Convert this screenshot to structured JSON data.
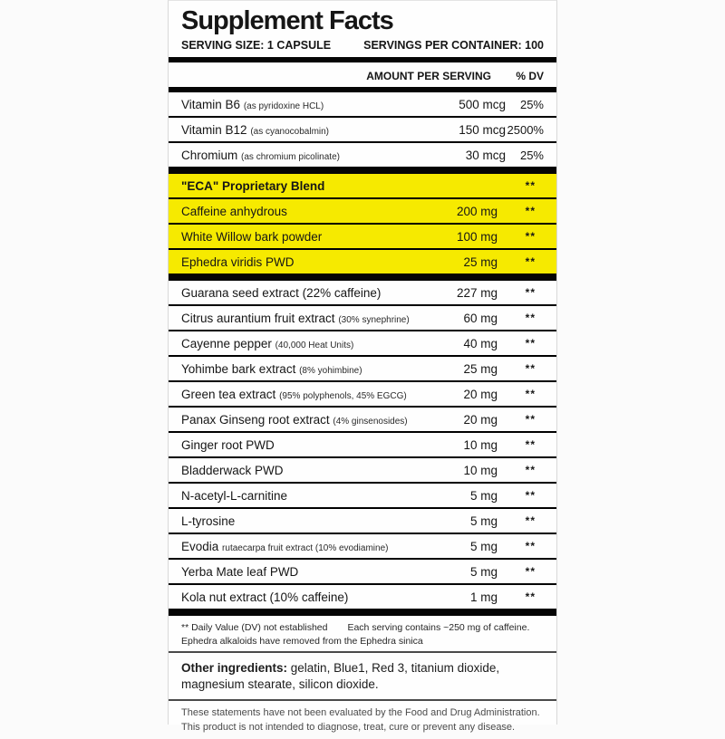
{
  "label": {
    "title": "Supplement Facts",
    "serving_size": "SERVING SIZE: 1 CAPSULE",
    "servings_per_container": "SERVINGS PER CONTAINER: 100",
    "col_amount": "AMOUNT PER SERVING",
    "col_dv": "% DV",
    "highlight_color": "#f6ea00",
    "rows": [
      {
        "name": "Vitamin B6",
        "sub": "(as pyridoxine HCL)",
        "amount": "500 mcg",
        "dv": "25%"
      },
      {
        "name": "Vitamin B12",
        "sub": "(as cyanocobalmin)",
        "amount": "150 mcg",
        "dv": "2500%"
      },
      {
        "name": "Chromium",
        "sub": "(as chromium picolinate)",
        "amount": "30 mcg",
        "dv": "25%",
        "thick_after": true
      },
      {
        "name": "\"ECA\" Proprietary Blend",
        "amount": "",
        "dv": "**",
        "highlight": true,
        "bold": true
      },
      {
        "name": "Caffeine anhydrous",
        "amount": "200 mg",
        "dv": "**",
        "highlight": true
      },
      {
        "name": "White Willow bark powder",
        "amount": "100 mg",
        "dv": "**",
        "highlight": true
      },
      {
        "name": "Ephedra viridis PWD",
        "amount": "25 mg",
        "dv": "**",
        "highlight": true,
        "thick_after": true
      },
      {
        "name": "Guarana seed extract (22% caffeine)",
        "amount": "227 mg",
        "dv": "**"
      },
      {
        "name": "Citrus aurantium fruit extract",
        "sub": "(30% synephrine)",
        "amount": "60 mg",
        "dv": "**"
      },
      {
        "name": "Cayenne pepper",
        "sub": "(40,000 Heat Units)",
        "amount": "40 mg",
        "dv": "**"
      },
      {
        "name": "Yohimbe bark extract",
        "sub": "(8% yohimbine)",
        "amount": "25 mg",
        "dv": "**"
      },
      {
        "name": "Green tea extract",
        "sub": "(95% polyphenols, 45% EGCG)",
        "amount": "20 mg",
        "dv": "**"
      },
      {
        "name": "Panax Ginseng root extract",
        "sub": "(4% ginsenosides)",
        "amount": "20 mg",
        "dv": "**"
      },
      {
        "name": "Ginger root PWD",
        "amount": "10 mg",
        "dv": "**"
      },
      {
        "name": "Bladderwack PWD",
        "amount": "10 mg",
        "dv": "**"
      },
      {
        "name": "N-acetyl-L-carnitine",
        "amount": "5 mg",
        "dv": "**"
      },
      {
        "name": "L-tyrosine",
        "amount": "5 mg",
        "dv": "**"
      },
      {
        "name": "Evodia",
        "sub": "rutaecarpa fruit extract (10% evodiamine)",
        "amount": "5 mg",
        "dv": "**"
      },
      {
        "name": "Yerba Mate leaf PWD",
        "amount": "5 mg",
        "dv": "**"
      },
      {
        "name": "Kola nut extract (10% caffeine)",
        "amount": "1 mg",
        "dv": "**",
        "thick_after": true
      }
    ],
    "footnote_dv": "** Daily Value (DV) not established",
    "footnote_caffeine": "Each serving contains ~250 mg of caffeine.",
    "footnote_ephedra": "Ephedra alkaloids have removed from the Ephedra sinica",
    "other_ingredients_label": "Other ingredients:",
    "other_ingredients_text": "gelatin, Blue1, Red 3, titanium dioxide, magnesium stearate, silicon dioxide.",
    "disclaimer_line1": "These statements have not been evaluated by the Food and Drug Administration.",
    "disclaimer_line2": "This product is not intended to diagnose, treat, cure or prevent any disease."
  }
}
